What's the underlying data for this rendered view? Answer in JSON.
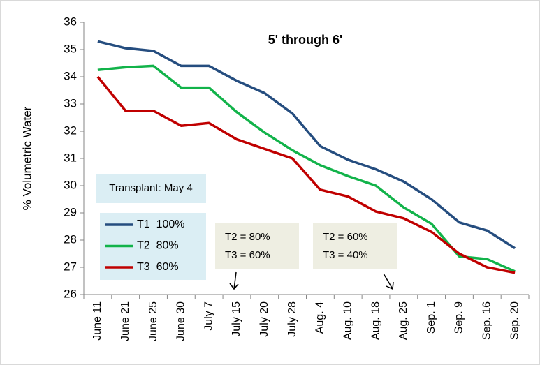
{
  "chart_data": {
    "type": "line",
    "title": "5' through 6'",
    "y_label": "% Volumetric Water",
    "categories": [
      "June 11",
      "June 21",
      "June 25",
      "June 30",
      "July 7",
      "July 15",
      "July 20",
      "July 28",
      "Aug. 4",
      "Aug. 10",
      "Aug. 18",
      "Aug. 25",
      "Sep. 1",
      "Sep. 9",
      "Sep. 16",
      "Sep. 20"
    ],
    "series": [
      {
        "name": "T1  100%",
        "color": "#254d7f",
        "values": [
          35.3,
          35.05,
          34.95,
          34.4,
          34.4,
          33.85,
          33.4,
          32.65,
          31.45,
          30.95,
          30.6,
          30.15,
          29.5,
          28.65,
          28.35,
          27.7
        ]
      },
      {
        "name": "T2  80%",
        "color": "#12b34a",
        "values": [
          34.25,
          34.35,
          34.4,
          33.6,
          33.6,
          32.7,
          31.95,
          31.3,
          30.75,
          30.35,
          30.0,
          29.2,
          28.6,
          27.4,
          27.3,
          26.85
        ]
      },
      {
        "name": "T3  60%",
        "color": "#c00000",
        "values": [
          34.0,
          32.75,
          32.75,
          32.2,
          32.3,
          31.7,
          31.35,
          31.0,
          29.85,
          29.6,
          29.05,
          28.8,
          28.3,
          27.5,
          27.0,
          26.8
        ]
      }
    ],
    "ylim": [
      26,
      36
    ],
    "yticks": [
      26,
      27,
      28,
      29,
      30,
      31,
      32,
      33,
      34,
      35,
      36
    ],
    "grid": false,
    "annotations": [
      {
        "lines": [
          "Transplant: May 4"
        ]
      },
      {
        "lines": [
          "T2 = 80%",
          "T3 = 60%"
        ]
      },
      {
        "lines": [
          "T2 = 60%",
          "T3 = 40%"
        ]
      }
    ]
  }
}
